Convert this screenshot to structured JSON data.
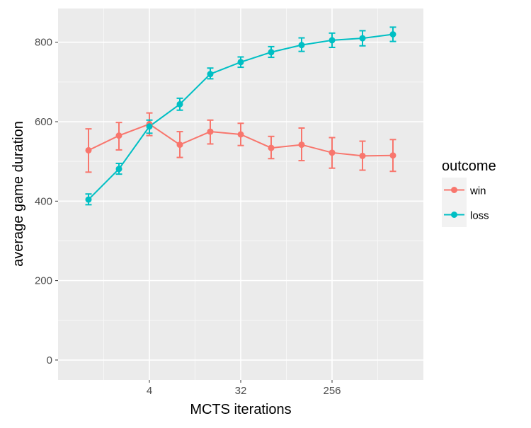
{
  "chart_data": {
    "type": "line",
    "xlabel": "MCTS iterations",
    "ylabel": "average game duration",
    "x_scale": "log2",
    "x": [
      1,
      2,
      4,
      8,
      16,
      32,
      64,
      128,
      256,
      512,
      1024
    ],
    "x_ticks": [
      {
        "value": 4,
        "label": "4"
      },
      {
        "value": 32,
        "label": "32"
      },
      {
        "value": 256,
        "label": "256"
      }
    ],
    "xlim": [
      0.5,
      2048
    ],
    "y_ticks": [
      0,
      200,
      400,
      600,
      800
    ],
    "ylim": [
      -50,
      885
    ],
    "grid": true,
    "legend": {
      "title": "outcome",
      "placement": "right"
    },
    "series": [
      {
        "name": "win",
        "color": "#F8766D",
        "values": [
          528,
          565,
          594,
          542,
          575,
          568,
          534,
          542,
          522,
          514,
          515
        ],
        "err_low": [
          473,
          529,
          565,
          510,
          544,
          540,
          507,
          502,
          483,
          478,
          475
        ],
        "err_high": [
          582,
          598,
          622,
          575,
          604,
          596,
          563,
          584,
          560,
          551,
          555
        ]
      },
      {
        "name": "loss",
        "color": "#00BFC4",
        "values": [
          404,
          481,
          588,
          644,
          720,
          750,
          775,
          793,
          805,
          810,
          820
        ],
        "err_low": [
          391,
          468,
          571,
          629,
          708,
          737,
          762,
          777,
          787,
          791,
          802
        ],
        "err_high": [
          418,
          495,
          604,
          659,
          735,
          763,
          789,
          811,
          823,
          829,
          838
        ]
      }
    ]
  }
}
